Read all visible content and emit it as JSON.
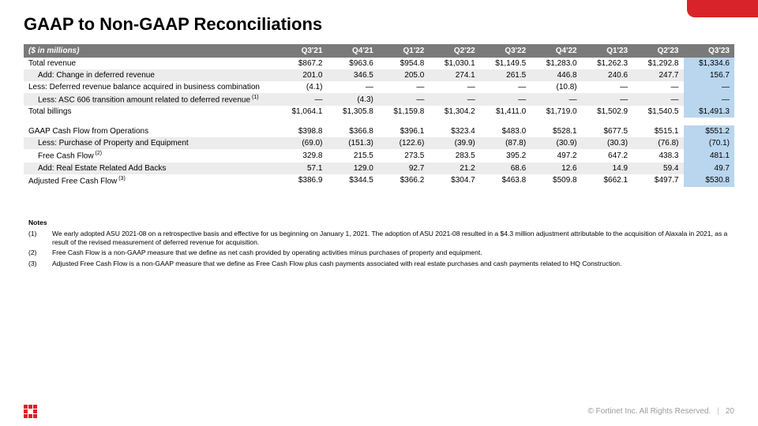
{
  "title": "GAAP to Non-GAAP Reconciliations",
  "table": {
    "header_label": "($ in millions)",
    "periods": [
      "Q3'21",
      "Q4'21",
      "Q1'22",
      "Q2'22",
      "Q3'22",
      "Q4'22",
      "Q1'23",
      "Q2'23",
      "Q3'23"
    ],
    "rows": [
      {
        "label": "Total revenue",
        "indent": false,
        "shade": false,
        "cells": [
          "$867.2",
          "$963.6",
          "$954.8",
          "$1,030.1",
          "$1,149.5",
          "$1,283.0",
          "$1,262.3",
          "$1,292.8",
          "$1,334.6"
        ]
      },
      {
        "label": "Add: Change in deferred revenue",
        "indent": true,
        "shade": true,
        "cells": [
          "201.0",
          "346.5",
          "205.0",
          "274.1",
          "261.5",
          "446.8",
          "240.6",
          "247.7",
          "156.7"
        ]
      },
      {
        "label": "Less: Deferred revenue balance acquired in business combination",
        "indent": false,
        "shade": false,
        "cells": [
          "(4.1)",
          "—",
          "—",
          "—",
          "—",
          "(10.8)",
          "—",
          "—",
          "—"
        ]
      },
      {
        "label": "Less: ASC 606 transition amount related to deferred revenue",
        "sup": "(1)",
        "indent": true,
        "shade": true,
        "cells": [
          "—",
          "(4.3)",
          "—",
          "—",
          "—",
          "—",
          "—",
          "—",
          "—"
        ]
      },
      {
        "label": "Total billings",
        "indent": false,
        "shade": false,
        "cells": [
          "$1,064.1",
          "$1,305.8",
          "$1,159.8",
          "$1,304.2",
          "$1,411.0",
          "$1,719.0",
          "$1,502.9",
          "$1,540.5",
          "$1,491.3"
        ]
      }
    ],
    "rows2": [
      {
        "label": "GAAP Cash Flow from Operations",
        "indent": false,
        "shade": false,
        "cells": [
          "$398.8",
          "$366.8",
          "$396.1",
          "$323.4",
          "$483.0",
          "$528.1",
          "$677.5",
          "$515.1",
          "$551.2"
        ]
      },
      {
        "label": "Less: Purchase of Property and Equipment",
        "indent": true,
        "shade": true,
        "cells": [
          "(69.0)",
          "(151.3)",
          "(122.6)",
          "(39.9)",
          "(87.8)",
          "(30.9)",
          "(30.3)",
          "(76.8)",
          "(70.1)"
        ]
      },
      {
        "label": "Free Cash Flow",
        "sup": "(2)",
        "indent": true,
        "shade": false,
        "cells": [
          "329.8",
          "215.5",
          "273.5",
          "283.5",
          "395.2",
          "497.2",
          "647.2",
          "438.3",
          "481.1"
        ]
      },
      {
        "label": "Add: Real Estate Related Add Backs",
        "indent": true,
        "shade": true,
        "cells": [
          "57.1",
          "129.0",
          "92.7",
          "21.2",
          "68.6",
          "12.6",
          "14.9",
          "59.4",
          "49.7"
        ]
      },
      {
        "label": "Adjusted Free Cash Flow",
        "sup": "(3)",
        "indent": false,
        "shade": false,
        "cells": [
          "$386.9",
          "$344.5",
          "$366.2",
          "$304.7",
          "$463.8",
          "$509.8",
          "$662.1",
          "$497.7",
          "$530.8"
        ]
      }
    ]
  },
  "notes": {
    "title": "Notes",
    "items": [
      {
        "num": "(1)",
        "text": "We early adopted ASU 2021-08 on a retrospective basis and effective for us beginning on January 1, 2021. The adoption of ASU 2021-08 resulted in a $4.3 million adjustment attributable to the acquisition of Alaxala in 2021, as a result of the revised measurement of deferred revenue for acquisition."
      },
      {
        "num": "(2)",
        "text": "Free Cash Flow is a non-GAAP measure that we define as net cash provided by operating activities minus purchases of property and equipment."
      },
      {
        "num": "(3)",
        "text": "Adjusted Free Cash Flow is a non-GAAP measure that we define as Free Cash Flow plus cash payments associated with real estate purchases and cash payments related to HQ Construction."
      }
    ]
  },
  "footer": {
    "copyright": "© Fortinet Inc. All Rights Reserved.",
    "page_number": "20"
  },
  "colors": {
    "brand_red": "#d8232a",
    "header_gray": "#7a7a7a",
    "row_shade": "#ececec",
    "highlight": "#b9d6ee",
    "footer_text": "#9a9a9a"
  }
}
